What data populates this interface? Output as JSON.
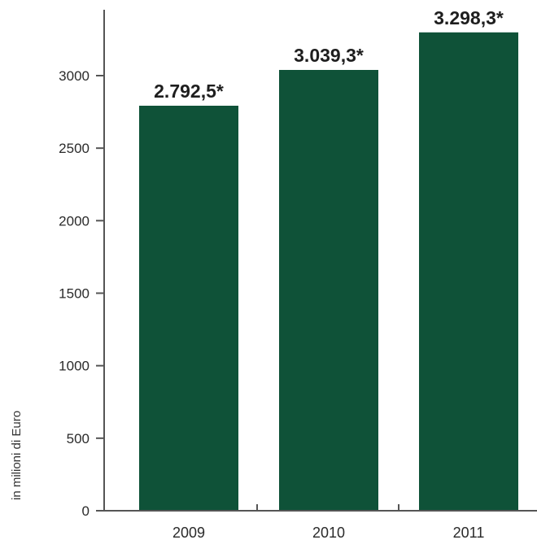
{
  "chart_data": {
    "type": "bar",
    "categories": [
      "2009",
      "2010",
      "2011"
    ],
    "values": [
      2792.5,
      3039.3,
      3298.3
    ],
    "value_labels": [
      "2.792,5*",
      "3.039,3*",
      "3.298,3*"
    ],
    "ylabel": "in milioni di Euro",
    "ylim": [
      0,
      3300
    ],
    "yticks": [
      0,
      500,
      1000,
      1500,
      2000,
      2500,
      3000
    ],
    "grid": false,
    "legend": "none",
    "bar_color": "#0f5238",
    "axis_color": "#555555"
  }
}
